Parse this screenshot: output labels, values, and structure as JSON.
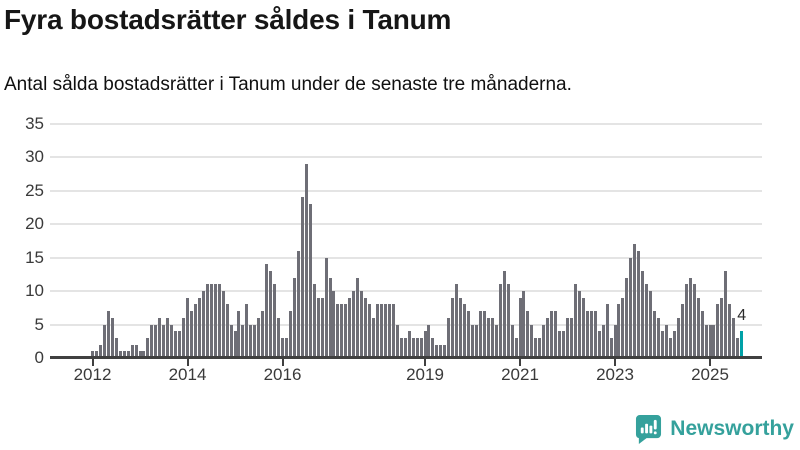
{
  "header": {
    "title": "Fyra bostadsrätter såldes i Tanum",
    "subtitle": "Antal sålda bostadsrätter i Tanum under de senaste tre månaderna."
  },
  "chart_data": {
    "type": "bar",
    "title": "Fyra bostadsrätter såldes i Tanum",
    "subtitle": "Antal sålda bostadsrätter i Tanum under de senaste tre månaderna.",
    "x_start": "2012-01",
    "x_interval": "month",
    "values": [
      1,
      1,
      2,
      5,
      7,
      6,
      3,
      1,
      1,
      1,
      2,
      2,
      1,
      1,
      3,
      5,
      5,
      6,
      5,
      6,
      5,
      4,
      4,
      6,
      9,
      7,
      8,
      9,
      10,
      11,
      11,
      11,
      11,
      10,
      8,
      5,
      4,
      7,
      5,
      8,
      5,
      5,
      6,
      7,
      14,
      13,
      11,
      6,
      3,
      3,
      7,
      12,
      16,
      24,
      29,
      23,
      11,
      9,
      9,
      15,
      12,
      10,
      8,
      8,
      8,
      9,
      10,
      12,
      10,
      9,
      8,
      6,
      8,
      8,
      8,
      8,
      8,
      5,
      3,
      3,
      4,
      3,
      3,
      3,
      4,
      5,
      3,
      2,
      2,
      2,
      6,
      9,
      11,
      9,
      8,
      7,
      5,
      5,
      7,
      7,
      6,
      6,
      5,
      11,
      13,
      11,
      5,
      3,
      9,
      10,
      7,
      5,
      3,
      3,
      5,
      6,
      7,
      7,
      4,
      4,
      6,
      6,
      11,
      10,
      9,
      7,
      7,
      7,
      4,
      5,
      8,
      3,
      5,
      8,
      9,
      12,
      15,
      17,
      16,
      13,
      11,
      10,
      7,
      6,
      4,
      5,
      3,
      4,
      6,
      8,
      11,
      12,
      11,
      9,
      7,
      5,
      5,
      5,
      8,
      9,
      13,
      8,
      6,
      3,
      4
    ],
    "highlight": {
      "position": "last",
      "value": 4,
      "label": "4"
    },
    "yticks": [
      0,
      5,
      10,
      15,
      20,
      25,
      30,
      35
    ],
    "ylim": [
      0,
      35
    ],
    "xticks": [
      {
        "label": "2012",
        "year": 2012
      },
      {
        "label": "2014",
        "year": 2014
      },
      {
        "label": "2016",
        "year": 2016
      },
      {
        "label": "2019",
        "year": 2019
      },
      {
        "label": "2021",
        "year": 2021
      },
      {
        "label": "2023",
        "year": 2023
      },
      {
        "label": "2025",
        "year": 2025
      }
    ],
    "grid": true,
    "legend": "none",
    "colors": {
      "bar": "#6e6e76",
      "highlight": "#00a1a7",
      "gridline": "#e4e4e4",
      "axis": "#404040",
      "label": "#3a3a3a"
    }
  },
  "footer": {
    "brand": "Newsworthy",
    "brand_color": "#35a19c"
  }
}
